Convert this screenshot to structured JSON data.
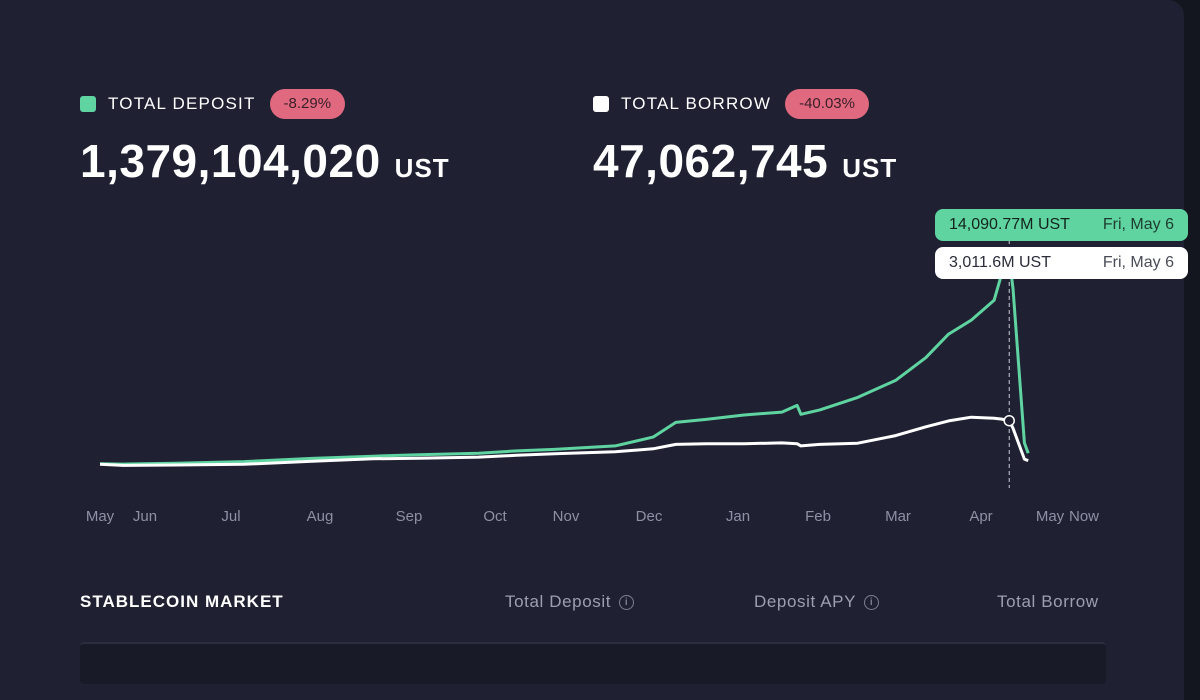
{
  "deposit": {
    "label": "TOTAL DEPOSIT",
    "change": "-8.29%",
    "value": "1,379,104,020",
    "unit": "UST",
    "color": "#5fd3a0"
  },
  "borrow": {
    "label": "TOTAL BORROW",
    "change": "-40.03%",
    "value": "47,062,745",
    "unit": "UST",
    "color": "#ffffff"
  },
  "tooltip": {
    "deposit_value": "14,090.77M UST",
    "deposit_date": "Fri, May 6",
    "borrow_value": "3,011.6M UST",
    "borrow_date": "Fri, May 6"
  },
  "chart_data": {
    "type": "line",
    "title": "",
    "xlabel": "",
    "ylabel": "",
    "unit": "M UST",
    "categories": [
      "May",
      "Jun",
      "Jul",
      "Aug",
      "Sep",
      "Oct",
      "Nov",
      "Dec",
      "Jan",
      "Feb",
      "Mar",
      "Apr",
      "May",
      "Now"
    ],
    "x": [
      0,
      0.3,
      1.0,
      1.9,
      2.8,
      3.6,
      4.2,
      5.0,
      5.5,
      6.0,
      6.8,
      7.3,
      7.6,
      8.0,
      8.5,
      9.0,
      9.2,
      9.25,
      9.5,
      10.0,
      10.5,
      10.9,
      11.2,
      11.5,
      11.8,
      11.9,
      12.0,
      12.05,
      12.2,
      12.25
    ],
    "ylim": [
      0,
      17000
    ],
    "marker_index": 26,
    "series": [
      {
        "name": "TOTAL DEPOSIT",
        "color": "#5fd3a0",
        "values": [
          80,
          60,
          120,
          230,
          450,
          600,
          700,
          800,
          960,
          1060,
          1300,
          1900,
          2900,
          3100,
          3400,
          3600,
          4050,
          3450,
          3750,
          4600,
          5750,
          7300,
          8900,
          9850,
          11200,
          13000,
          14090.77,
          12000,
          1500,
          800
        ]
      },
      {
        "name": "TOTAL BORROW",
        "color": "#ffffff",
        "values": [
          50,
          -30,
          0,
          50,
          260,
          420,
          460,
          540,
          660,
          760,
          900,
          1100,
          1400,
          1450,
          1450,
          1500,
          1450,
          1300,
          1400,
          1480,
          2000,
          2600,
          3000,
          3250,
          3180,
          3120,
          3011.6,
          2500,
          400,
          300
        ]
      }
    ]
  },
  "market": {
    "title": "STABLECOIN MARKET",
    "col_deposit": "Total Deposit",
    "col_apy": "Deposit APY",
    "col_borrow": "Total Borrow"
  }
}
